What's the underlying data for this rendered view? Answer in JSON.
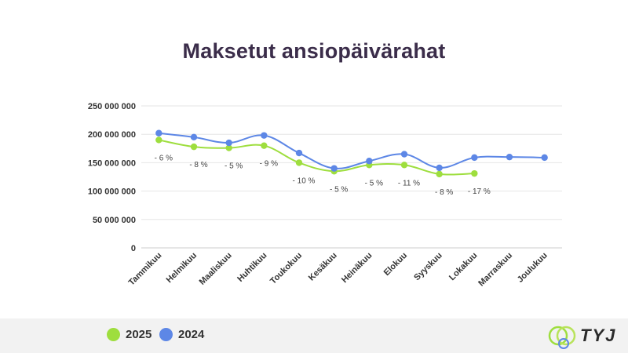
{
  "chart_data": {
    "type": "line",
    "title": "Maksetut ansiopäivärahat",
    "categories": [
      "Tammikuu",
      "Helmikuu",
      "Maaliskuu",
      "Huhtikuu",
      "Toukokuu",
      "Kesäkuu",
      "Heinäkuu",
      "Elokuu",
      "Syyskuu",
      "Lokakuu",
      "Marraskuu",
      "Joulukuu"
    ],
    "y_ticks": [
      "0",
      "50 000 000",
      "100 000 000",
      "150 000 000",
      "200 000 000",
      "250 000 000"
    ],
    "ylim": [
      0,
      250000000
    ],
    "grid": true,
    "legend_position": "bottom-left",
    "series": [
      {
        "name": "2025",
        "color": "#9ede3e",
        "values": [
          190000000,
          178000000,
          176000000,
          180000000,
          150000000,
          135000000,
          146000000,
          146000000,
          130000000,
          131000000,
          null,
          null
        ]
      },
      {
        "name": "2024",
        "color": "#5d87e6",
        "values": [
          202000000,
          195000000,
          185000000,
          198000000,
          167000000,
          140000000,
          153000000,
          165000000,
          141000000,
          159000000,
          160000000,
          159000000
        ]
      }
    ],
    "change_labels": [
      "- 6 %",
      "- 8 %",
      "- 5 %",
      "- 9 %",
      "- 10 %",
      "- 5 %",
      "- 5 %",
      "- 11 %",
      "- 8 %",
      "- 17 %"
    ]
  },
  "logo": {
    "text": "TYJ"
  }
}
